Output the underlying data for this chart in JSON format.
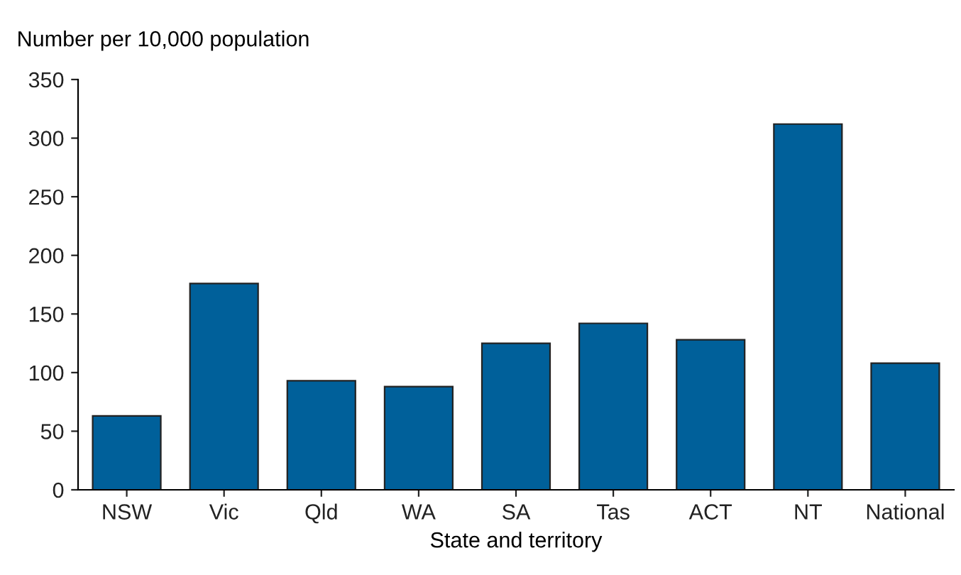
{
  "chart_data": {
    "type": "bar",
    "xlabel": "State and territory",
    "ylabel": "Number per 10,000 population",
    "categories": [
      "NSW",
      "Vic",
      "Qld",
      "WA",
      "SA",
      "Tas",
      "ACT",
      "NT",
      "National"
    ],
    "values": [
      63,
      176,
      93,
      88,
      125,
      142,
      128,
      312,
      108
    ],
    "color": "#00609a",
    "ylim": [
      0,
      350
    ],
    "yticks": [
      0,
      50,
      100,
      150,
      200,
      250,
      300,
      350
    ],
    "grid": false
  }
}
